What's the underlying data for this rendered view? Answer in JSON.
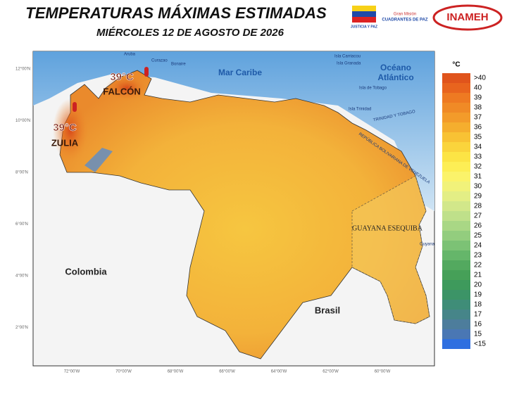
{
  "header": {
    "title": "TEMPERATURAS MÁXIMAS ESTIMADAS",
    "subtitle": "MIÉRCOLES 12 DE AGOSTO DE 2026",
    "logos": [
      "JUSTICIA Y PAZ",
      "Gran Misión",
      "CUADRANTES DE PAZ",
      "INAMEH"
    ]
  },
  "map": {
    "labels": {
      "sea": "Mar Caribe",
      "ocean_1": "Océano",
      "ocean_2": "Atlántico",
      "colombia": "Colombia",
      "brasil": "Brasil",
      "guayana": "GUAYANA ESEQUIBA",
      "guyana": "Guyana",
      "aruba": "Aruba",
      "curazao": "Curazao",
      "bonaire": "Bonaire",
      "carriacou": "Isla Carriacou",
      "granada": "Isla Granada",
      "tobago": "Isla de Tobago",
      "trinidad": "Isla Trinidad",
      "tt": "TRINIDAD Y TOBAGO",
      "rbv": "REPÚBLICA BOLIVARIANA DE VENEZUELA"
    },
    "hotspots": [
      {
        "temp": "39°C",
        "state": "FALCÓN"
      },
      {
        "temp": "39°C",
        "state": "ZULIA"
      }
    ],
    "lat_ticks": [
      "12°00'N",
      "10°00'N",
      "8°00'N",
      "6°00'N",
      "4°00'N",
      "2°00'N"
    ],
    "lon_ticks": [
      "72°00'W",
      "70°00'W",
      "68°00'W",
      "66°00'W",
      "64°00'W",
      "62°00'W",
      "60°00'W"
    ]
  },
  "legend": {
    "unit": "°C",
    "labels": [
      ">40",
      "40",
      "39",
      "38",
      "37",
      "36",
      "35",
      "34",
      "33",
      "32",
      "31",
      "30",
      "29",
      "28",
      "27",
      "26",
      "25",
      "24",
      "23",
      "22",
      "21",
      "20",
      "19",
      "18",
      "17",
      "16",
      "15",
      "<15"
    ],
    "colors": [
      "#e0541c",
      "#e8641e",
      "#ee7a22",
      "#f08a26",
      "#f39b2a",
      "#f5ae2e",
      "#f8c234",
      "#fad43c",
      "#fce445",
      "#fdee55",
      "#fbf36a",
      "#f1f27a",
      "#e3ee85",
      "#d2e78a",
      "#bfe08a",
      "#a9d785",
      "#93cd7e",
      "#7cc275",
      "#65b66a",
      "#53a95f",
      "#46a058",
      "#3e9a5c",
      "#3c9467",
      "#3f8d78",
      "#468589",
      "#4d7d9c",
      "#4a77b4",
      "#2f6fe0"
    ]
  }
}
